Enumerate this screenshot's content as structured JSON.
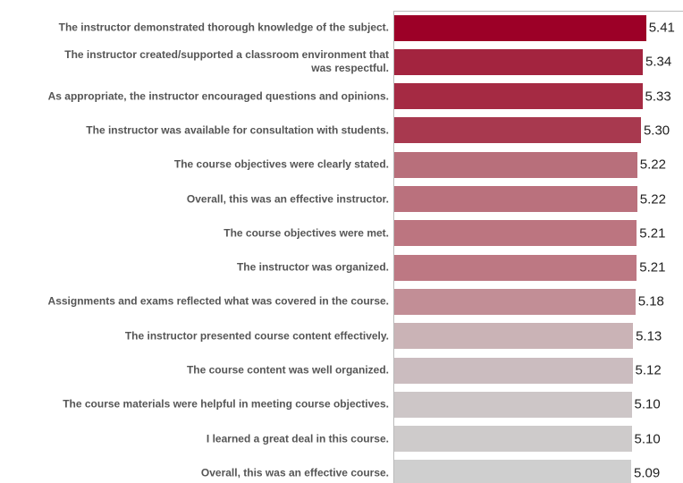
{
  "chart_data": {
    "type": "bar",
    "orientation": "horizontal",
    "categories": [
      "The instructor demonstrated thorough knowledge of the subject.",
      "The instructor created/supported a classroom environment that\nwas respectful.",
      "As appropriate, the instructor encouraged questions and opinions.",
      "The instructor was available for consultation with students.",
      "The course objectives were clearly stated.",
      "Overall, this was an effective instructor.",
      "The course objectives were met.",
      "The instructor was organized.",
      "Assignments and exams reflected what was covered in the course.",
      "The instructor presented course content effectively.",
      "The course content was well organized.",
      "The course materials were helpful in meeting course objectives.",
      "I learned a great deal in this course.",
      "Overall, this was an effective course."
    ],
    "values": [
      5.41,
      5.34,
      5.33,
      5.3,
      5.22,
      5.22,
      5.21,
      5.21,
      5.18,
      5.13,
      5.12,
      5.1,
      5.1,
      5.09
    ],
    "value_labels": [
      "5.41",
      "5.34",
      "5.33",
      "5.30",
      "5.22",
      "5.22",
      "5.21",
      "5.21",
      "5.18",
      "5.13",
      "5.12",
      "5.10",
      "5.10",
      "5.09"
    ],
    "colors": [
      "#9c0027",
      "#a3243f",
      "#a52a43",
      "#a8394f",
      "#b86f7b",
      "#ba717d",
      "#bc7580",
      "#bd7883",
      "#c28e96",
      "#cab3b6",
      "#cbbcbf",
      "#cdc6c7",
      "#cecbcb",
      "#cfcfcf"
    ],
    "xlim": [
      0,
      6.2
    ]
  }
}
